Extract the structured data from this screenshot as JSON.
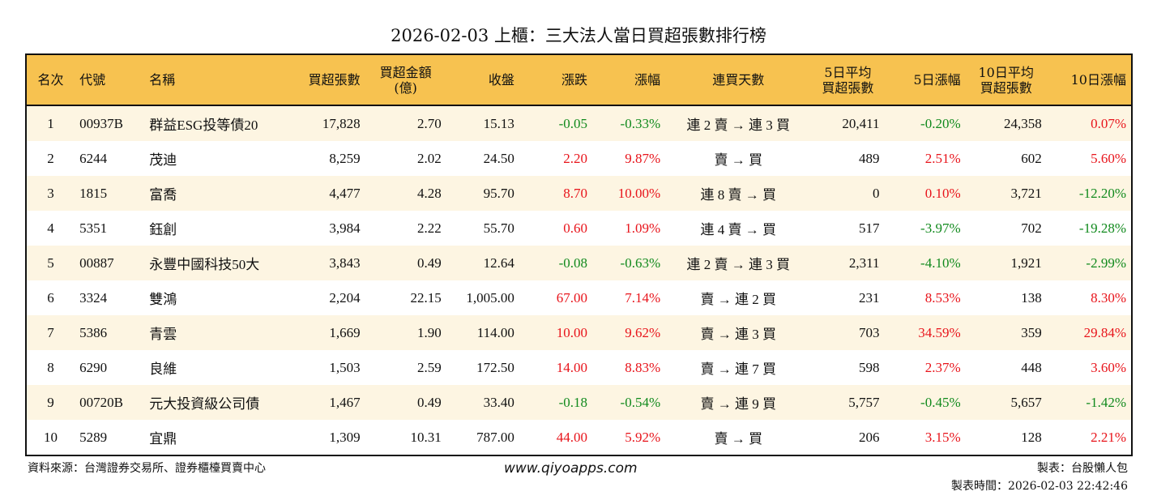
{
  "title": "2026-02-03 上櫃：三大法人當日買超張數排行榜",
  "headers": [
    "名次",
    "代號",
    "名稱",
    "買超張數",
    "買超金額\n(億)",
    "收盤",
    "漲跌",
    "漲幅",
    "連買天數",
    "5日平均\n買超張數",
    "5日漲幅",
    "10日平均\n買超張數",
    "10日漲幅"
  ],
  "rows": [
    [
      "1",
      "00937B",
      "群益ESG投等債20",
      "17,828",
      "2.70",
      "15.13",
      "-0.05",
      "-0.33%",
      "連 2 賣 → 連 3 買",
      "20,411",
      "-0.20%",
      "24,358",
      "0.07%"
    ],
    [
      "2",
      "6244",
      "茂迪",
      "8,259",
      "2.02",
      "24.50",
      "2.20",
      "9.87%",
      "賣 → 買",
      "489",
      "2.51%",
      "602",
      "5.60%"
    ],
    [
      "3",
      "1815",
      "富喬",
      "4,477",
      "4.28",
      "95.70",
      "8.70",
      "10.00%",
      "連 8 賣 → 買",
      "0",
      "0.10%",
      "3,721",
      "-12.20%"
    ],
    [
      "4",
      "5351",
      "鈺創",
      "3,984",
      "2.22",
      "55.70",
      "0.60",
      "1.09%",
      "連 4 賣 → 買",
      "517",
      "-3.97%",
      "702",
      "-19.28%"
    ],
    [
      "5",
      "00887",
      "永豐中國科技50大",
      "3,843",
      "0.49",
      "12.64",
      "-0.08",
      "-0.63%",
      "連 2 賣 → 連 3 買",
      "2,311",
      "-4.10%",
      "1,921",
      "-2.99%"
    ],
    [
      "6",
      "3324",
      "雙鴻",
      "2,204",
      "22.15",
      "1,005.00",
      "67.00",
      "7.14%",
      "賣 → 連 2 買",
      "231",
      "8.53%",
      "138",
      "8.30%"
    ],
    [
      "7",
      "5386",
      "青雲",
      "1,669",
      "1.90",
      "114.00",
      "10.00",
      "9.62%",
      "賣 → 連 3 買",
      "703",
      "34.59%",
      "359",
      "29.84%"
    ],
    [
      "8",
      "6290",
      "良維",
      "1,503",
      "2.59",
      "172.50",
      "14.00",
      "8.83%",
      "賣 → 連 7 買",
      "598",
      "2.37%",
      "448",
      "3.60%"
    ],
    [
      "9",
      "00720B",
      "元大投資級公司債",
      "1,467",
      "0.49",
      "33.40",
      "-0.18",
      "-0.54%",
      "賣 → 連 9 買",
      "5,757",
      "-0.45%",
      "5,657",
      "-1.42%"
    ],
    [
      "10",
      "5289",
      "宜鼎",
      "1,309",
      "10.31",
      "787.00",
      "44.00",
      "5.92%",
      "賣 → 買",
      "206",
      "3.15%",
      "128",
      "2.21%"
    ]
  ],
  "colors": {
    "header": "#F7C250",
    "row_alt": "#FDF5E2",
    "up": "#E8141B",
    "down": "#118A1D"
  },
  "footer": {
    "source": "資料來源：台灣證券交易所、證券櫃檯買賣中心",
    "site": "www.qiyoapps.com",
    "maker": "製表：台股懶人包",
    "time": "製表時間：2026-02-03 22:42:46"
  }
}
